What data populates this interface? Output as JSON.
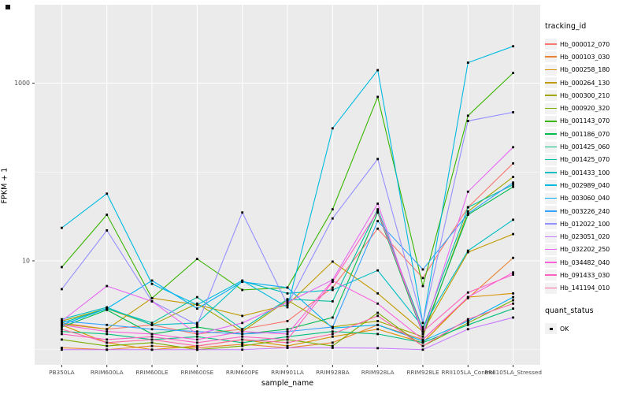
{
  "axes": {
    "y_label": "FPKM + 1",
    "x_label": "sample_name"
  },
  "legend": {
    "tracking_title": "tracking_id",
    "quant_title": "quant_status",
    "quant_label": "OK"
  },
  "style": {
    "panel_bg": "#EBEBEB",
    "grid_color": "#FFFFFF",
    "tick_label_color": "#4D4D4D",
    "tick_mark_color": "#333333",
    "point_color": "#000000",
    "legend_key_bg": "#F2F2F2"
  },
  "chart_data": {
    "type": "line",
    "title": "",
    "xlabel": "sample_name",
    "ylabel": "FPKM + 1",
    "y_scale": "log10",
    "ylim": [
      0.7,
      7500
    ],
    "grid": true,
    "legend_position": "right",
    "point_shape": "filled-black-square",
    "y_ticks": [
      {
        "value": 10,
        "label": "10"
      },
      {
        "value": 1000,
        "label": "1000"
      }
    ],
    "y_minor_ticks": [
      1,
      100
    ],
    "categories": [
      "PB350LA",
      "RRIM600LA",
      "RRIM600LE",
      "RRIM600SE",
      "RRIM600PE",
      "RRIM901LA",
      "RRIM928BA",
      "RRIM928LA",
      "RRIM928LE",
      "RRII105LA_Control",
      "RRII105LA_Stressed"
    ],
    "series": [
      {
        "name": "Hb_000012_070",
        "color": "#F8766D",
        "values": [
          2.0,
          1.7,
          1.9,
          1.5,
          1.7,
          2.1,
          5.0,
          23,
          6.4,
          40,
          125
        ]
      },
      {
        "name": "Hb_000103_030",
        "color": "#EA8331",
        "values": [
          1.05,
          1.0,
          1.1,
          1.05,
          1.15,
          1.05,
          1.2,
          1.9,
          1.3,
          3.8,
          10.8
        ]
      },
      {
        "name": "Hb_000258_180",
        "color": "#D89000",
        "values": [
          1.9,
          1.2,
          1.0,
          1.1,
          1.3,
          1.1,
          1.4,
          1.7,
          1.2,
          3.9,
          4.3
        ]
      },
      {
        "name": "Hb_000264_130",
        "color": "#C09B00",
        "values": [
          1.95,
          1.7,
          3.8,
          3.2,
          2.4,
          3.2,
          9.8,
          4.3,
          1.6,
          12.5,
          20
        ]
      },
      {
        "name": "Hb_000300_210",
        "color": "#A3A500",
        "values": [
          2.1,
          2.9,
          1.9,
          3.3,
          1.6,
          3.6,
          1.8,
          2.1,
          1.4,
          36,
          88
        ]
      },
      {
        "name": "Hb_000920_320",
        "color": "#7CAE00",
        "values": [
          1.3,
          1.1,
          1.2,
          1.0,
          1.1,
          1.3,
          1.1,
          2.6,
          1.1,
          2.0,
          3.6
        ]
      },
      {
        "name": "Hb_001143_070",
        "color": "#39B600",
        "values": [
          8.5,
          33,
          3.8,
          10.5,
          4.7,
          5.0,
          38,
          700,
          5.2,
          430,
          1300
        ]
      },
      {
        "name": "Hb_001186_070",
        "color": "#00BB4E",
        "values": [
          1.8,
          2.8,
          1.5,
          1.8,
          1.5,
          1.7,
          2.3,
          35,
          1.5,
          33,
          68
        ]
      },
      {
        "name": "Hb_001425_060",
        "color": "#00BF7D",
        "values": [
          1.6,
          1.5,
          1.3,
          1.4,
          1.2,
          1.4,
          1.6,
          1.5,
          1.2,
          1.9,
          2.9
        ]
      },
      {
        "name": "Hb_001425_070",
        "color": "#00C1A3",
        "values": [
          2.0,
          2.9,
          2.0,
          3.9,
          1.7,
          3.7,
          3.5,
          38,
          1.7,
          40,
          72
        ]
      },
      {
        "name": "Hb_001433_100",
        "color": "#00BFC4",
        "values": [
          2.2,
          3.0,
          1.9,
          2.0,
          5.9,
          4.3,
          4.7,
          7.8,
          1.8,
          13,
          29
        ]
      },
      {
        "name": "Hb_002989_040",
        "color": "#00BAE0",
        "values": [
          23.5,
          57,
          5.5,
          3.2,
          6.0,
          3.0,
          310,
          1400,
          2.0,
          1700,
          2600
        ]
      },
      {
        "name": "Hb_003060_040",
        "color": "#00B0F6",
        "values": [
          1.9,
          2.9,
          6.0,
          2.9,
          5.8,
          5.0,
          1.75,
          1.9,
          1.25,
          2.1,
          3.9
        ]
      },
      {
        "name": "Hb_003226_240",
        "color": "#35A2FF",
        "values": [
          2.1,
          1.9,
          1.7,
          1.6,
          1.5,
          1.6,
          1.8,
          28,
          8.0,
          34,
          76
        ]
      },
      {
        "name": "Hb_012022_100",
        "color": "#9590FF",
        "values": [
          4.8,
          22,
          3.5,
          1.9,
          35,
          3.2,
          30,
          140,
          2.0,
          375,
          470
        ]
      },
      {
        "name": "Hb_023051_020",
        "color": "#C77CFF",
        "values": [
          1.0,
          1.0,
          1.0,
          1.0,
          1.0,
          1.05,
          1.05,
          1.04,
          1.0,
          1.7,
          2.3
        ]
      },
      {
        "name": "Hb_032202_250",
        "color": "#E76BF3",
        "values": [
          2.1,
          5.2,
          3.5,
          1.5,
          2.0,
          3.4,
          6.1,
          44,
          1.5,
          60,
          190
        ]
      },
      {
        "name": "Hb_034482_040",
        "color": "#FA62DB",
        "values": [
          1.9,
          1.6,
          1.5,
          1.3,
          1.6,
          1.5,
          6.0,
          3.3,
          1.3,
          3.9,
          7.4
        ]
      },
      {
        "name": "Hb_091433_030",
        "color": "#FF61C3",
        "values": [
          1.5,
          1.3,
          1.4,
          1.2,
          1.4,
          1.3,
          5.8,
          36,
          1.6,
          4.4,
          7.0
        ]
      },
      {
        "name": "Hb_141194_010",
        "color": "#FF67A4",
        "values": [
          1.7,
          1.2,
          1.3,
          1.1,
          1.3,
          1.2,
          1.5,
          2.4,
          1.1,
          2.2,
          3.3
        ]
      }
    ]
  }
}
